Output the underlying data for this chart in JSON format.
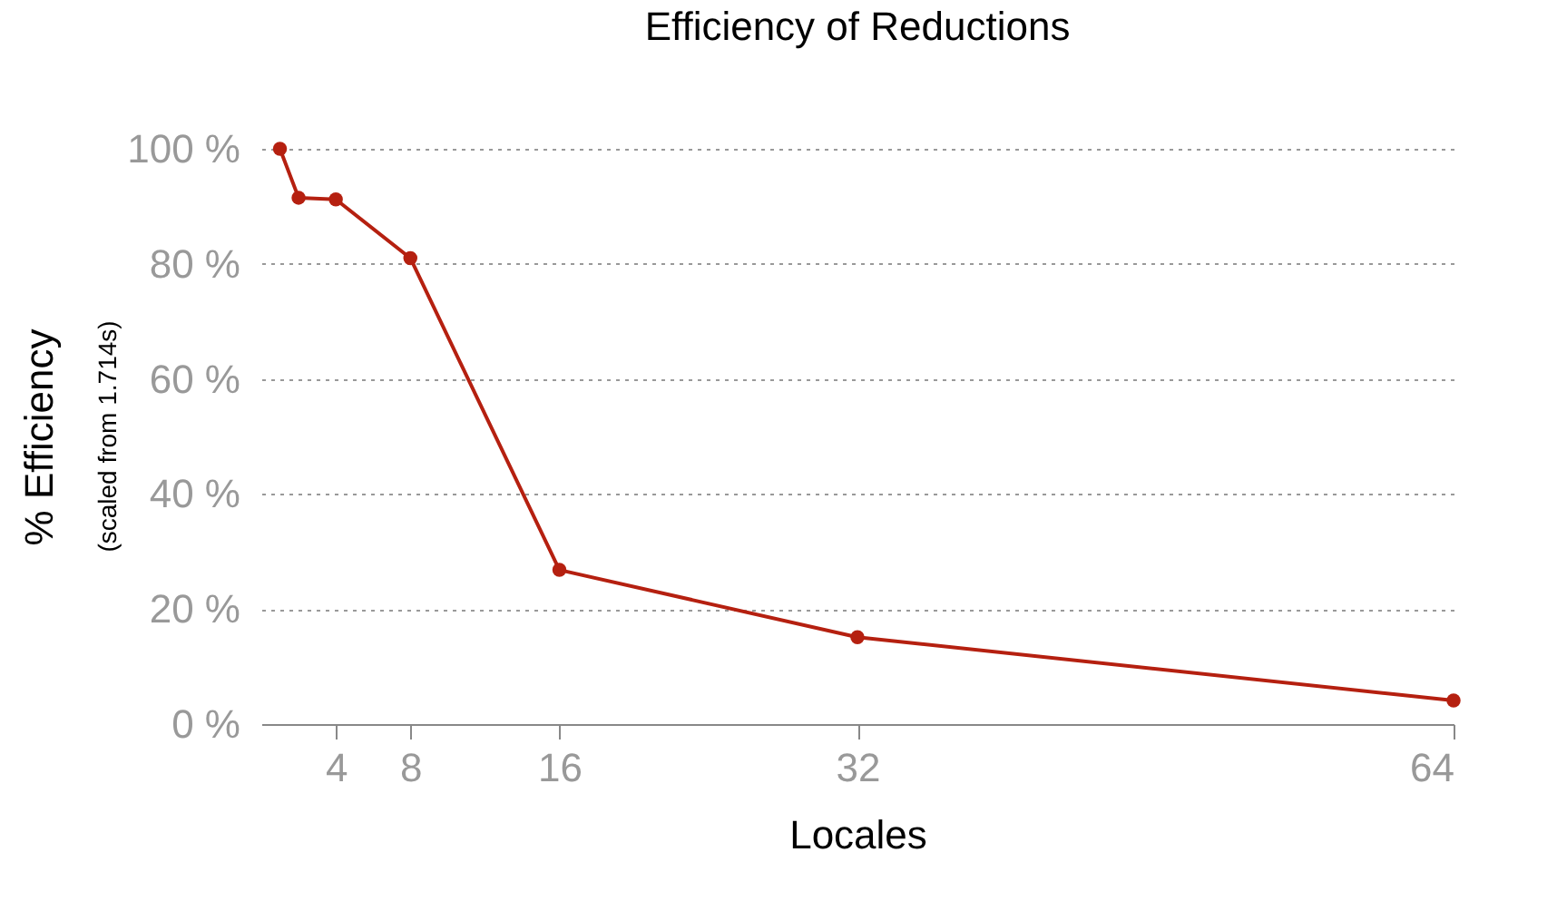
{
  "chart_data": {
    "type": "line",
    "title": "Efficiency of Reductions",
    "xlabel": "Locales",
    "ylabel": "% Efficiency",
    "annotations": [
      "(scaled from 1.714s)"
    ],
    "x": [
      1,
      2,
      4,
      8,
      16,
      32,
      64
    ],
    "series": [
      {
        "color": "#b52010",
        "values": [
          100,
          91.5,
          91.2,
          81,
          26.8,
          15.1,
          4.1
        ]
      }
    ],
    "xlim": [
      0,
      64
    ],
    "xticks": [
      4,
      8,
      16,
      32,
      64
    ],
    "ylim": [
      0,
      100
    ],
    "yticks": [
      {
        "value": 0,
        "label": "0 %"
      },
      {
        "value": 20,
        "label": "20 %"
      },
      {
        "value": 40,
        "label": "40 %"
      },
      {
        "value": 60,
        "label": "60 %"
      },
      {
        "value": 80,
        "label": "80 %"
      },
      {
        "value": 100,
        "label": "100 %"
      }
    ],
    "grid": "y",
    "marker": "circle",
    "line_style": "solid"
  }
}
